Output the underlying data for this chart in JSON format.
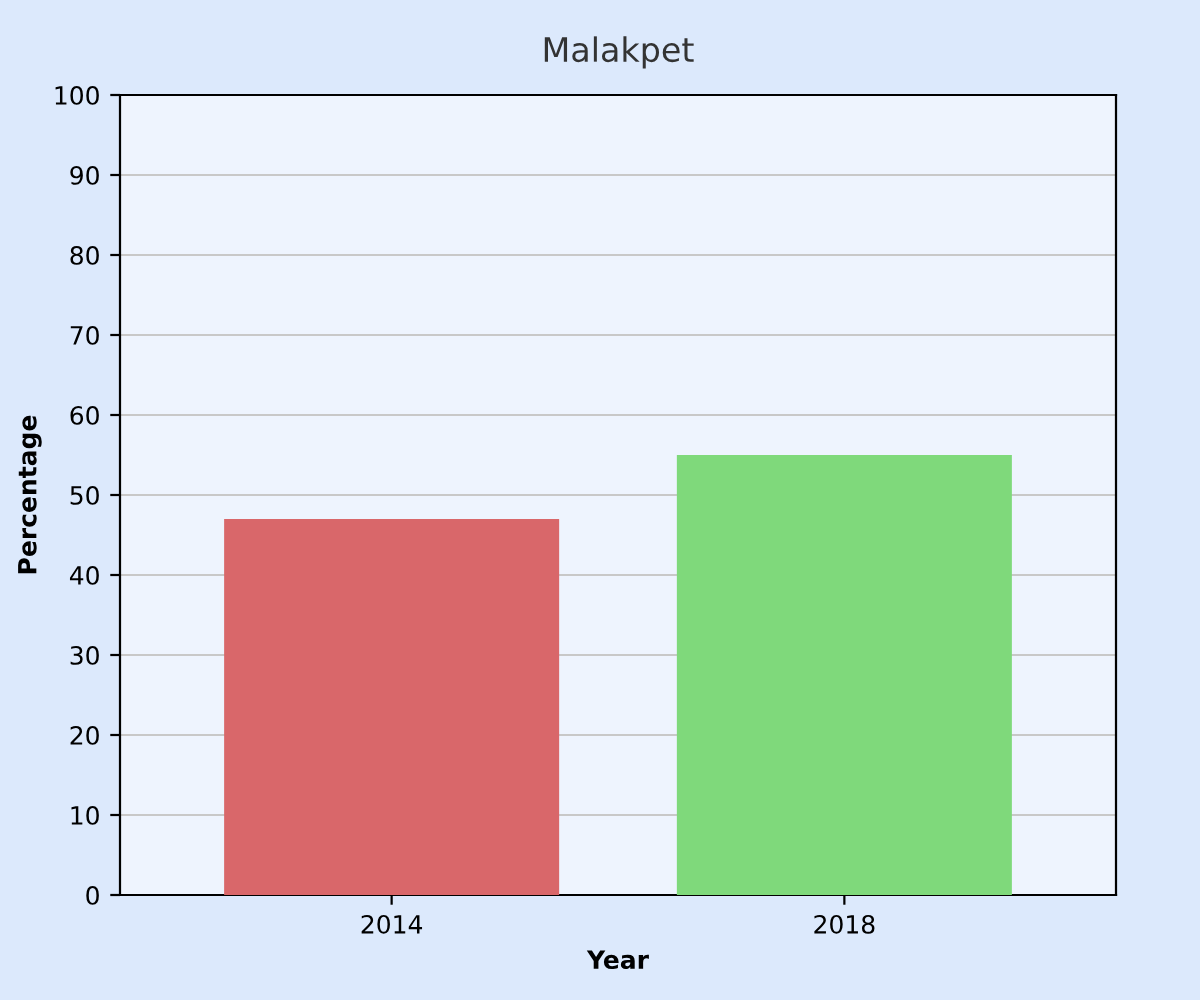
{
  "chart_data": {
    "type": "bar",
    "title": "Malakpet",
    "xlabel": "Year",
    "ylabel": "Percentage",
    "categories": [
      "2014",
      "2018"
    ],
    "series": [
      {
        "colors": [
          "#d9676a",
          "#7fd97b"
        ],
        "values": [
          47,
          55
        ]
      }
    ],
    "ylim": [
      0,
      100
    ],
    "yticks": [
      0,
      10,
      20,
      30,
      40,
      50,
      60,
      70,
      80,
      90,
      100
    ],
    "grid": "y",
    "legend": false
  }
}
